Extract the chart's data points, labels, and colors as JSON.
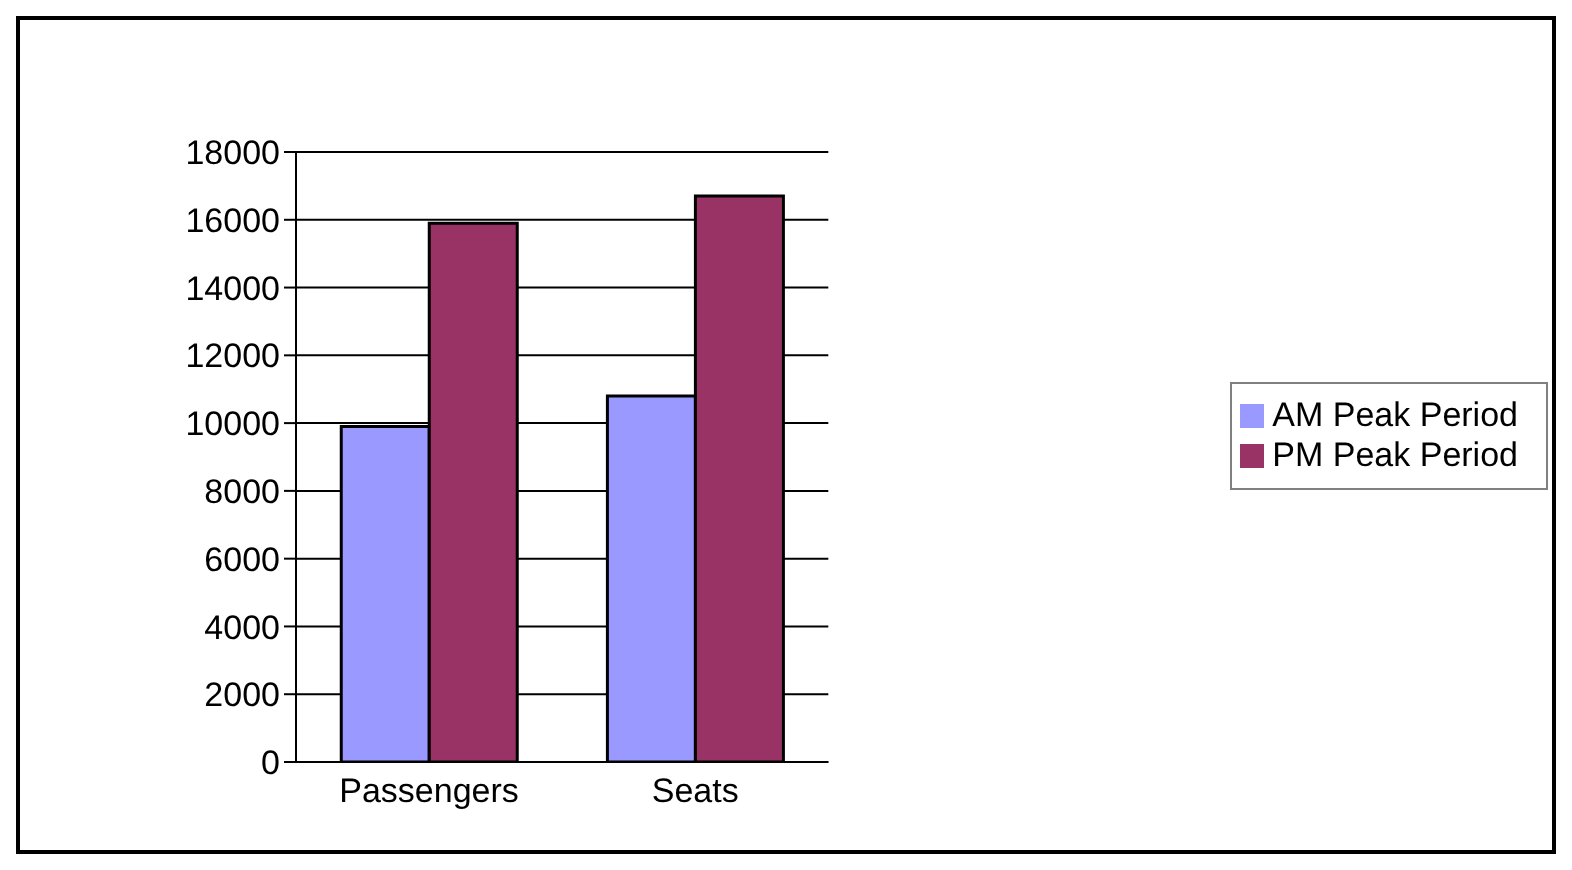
{
  "chart_data": {
    "type": "bar",
    "categories": [
      "Passengers",
      "Seats"
    ],
    "series": [
      {
        "name": "AM Peak Period",
        "color": "#9999ff",
        "values": [
          9900,
          10800
        ]
      },
      {
        "name": "PM Peak Period",
        "color": "#993366",
        "values": [
          15900,
          16700
        ]
      }
    ],
    "ylim": [
      0,
      18000
    ],
    "yticks": [
      0,
      2000,
      4000,
      6000,
      8000,
      10000,
      12000,
      14000,
      16000,
      18000
    ],
    "grid": "y",
    "legend": "right"
  }
}
